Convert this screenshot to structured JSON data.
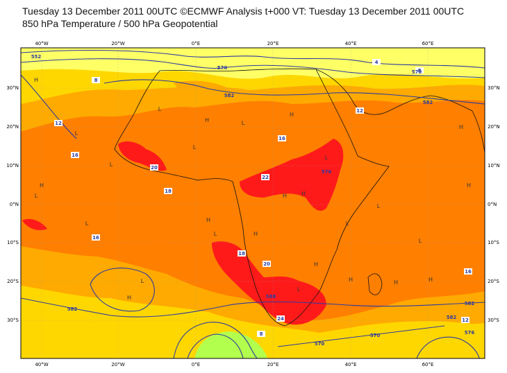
{
  "header": {
    "line1": "Tuesday 13 December 2011 00UTC ©ECMWF Analysis t+000 VT: Tuesday 13 December 2011 00UTC",
    "line2": "850 hPa Temperature / 500 hPa Geopotential"
  },
  "axes": {
    "lon_labels": [
      "40°W",
      "20°W",
      "0°E",
      "20°E",
      "40°E",
      "60°E"
    ],
    "lat_labels_left": [
      "30°N",
      "20°N",
      "10°N",
      "0°N",
      "10°S",
      "20°S",
      "30°S"
    ],
    "lat_labels_right": [
      "30°N",
      "20°N",
      "10°N",
      "0°N",
      "10°S",
      "20°S",
      "30°S"
    ]
  },
  "map": {
    "colors": {
      "yellow_light": "#ffff66",
      "yellow": "#ffd700",
      "amber": "#ffaa00",
      "orange": "#ff7f00",
      "red": "#ff1a1a",
      "green": "#b3ff4d",
      "contour": "#2b3aa0"
    },
    "pressure_marks": [
      "H",
      "H",
      "H",
      "H",
      "H",
      "H",
      "H",
      "H",
      "H",
      "H",
      "H",
      "H",
      "H",
      "H",
      "H",
      "L",
      "L",
      "L",
      "L",
      "L",
      "L",
      "L",
      "L",
      "L",
      "L",
      "L",
      "L",
      "L",
      "L"
    ],
    "temperature_labels": [
      "8",
      "12",
      "16",
      "18",
      "20",
      "22",
      "24",
      "12",
      "16",
      "20",
      "12",
      "16",
      "8",
      "4",
      "8",
      "18",
      "16"
    ],
    "geopotential_labels": [
      "552",
      "570",
      "582",
      "582",
      "570",
      "588",
      "582",
      "570",
      "576",
      "582",
      "570",
      "582",
      "576"
    ]
  }
}
